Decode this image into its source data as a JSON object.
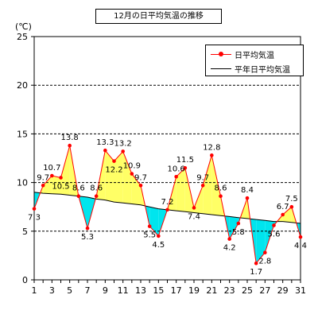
{
  "title": "12月の日平均気温の推移",
  "unit": "(℃)",
  "legend": {
    "daily": "日平均気温",
    "normal": "平年日平均気温"
  },
  "colors": {
    "daily_line": "#ff0000",
    "normal_line": "#000000",
    "above_fill": "#ffff66",
    "below_fill": "#00e5ee",
    "grid": "#000000"
  },
  "chart_data": {
    "type": "line",
    "title": "12月の日平均気温の推移",
    "ylabel": "(℃)",
    "ylim": [
      0,
      25
    ],
    "yticks": [
      0,
      5,
      10,
      15,
      20,
      25
    ],
    "xlim": [
      1,
      31
    ],
    "xticks": [
      1,
      3,
      5,
      7,
      9,
      11,
      13,
      15,
      17,
      19,
      21,
      23,
      25,
      27,
      29,
      31
    ],
    "grid": true,
    "legend_position": "top-right",
    "x": [
      1,
      2,
      3,
      4,
      5,
      6,
      7,
      8,
      9,
      10,
      11,
      12,
      13,
      14,
      15,
      16,
      17,
      18,
      19,
      20,
      21,
      22,
      23,
      24,
      25,
      26,
      27,
      28,
      29,
      30,
      31
    ],
    "series": [
      {
        "name": "日平均気温",
        "values": [
          7.3,
          9.7,
          10.7,
          10.5,
          13.8,
          8.6,
          5.3,
          8.6,
          13.3,
          12.2,
          13.2,
          10.9,
          9.7,
          5.5,
          4.5,
          7.2,
          10.6,
          11.5,
          7.4,
          9.7,
          12.8,
          8.6,
          4.2,
          5.8,
          8.4,
          1.7,
          2.8,
          5.6,
          6.7,
          7.5,
          4.4
        ]
      },
      {
        "name": "平年日平均気温",
        "values": [
          9.0,
          8.9,
          8.85,
          8.8,
          8.7,
          8.6,
          8.5,
          8.3,
          8.2,
          8.0,
          7.9,
          7.8,
          7.7,
          7.5,
          7.3,
          7.2,
          7.1,
          7.0,
          6.9,
          6.8,
          6.7,
          6.6,
          6.5,
          6.4,
          6.3,
          6.2,
          6.1,
          6.0,
          6.0,
          5.9,
          5.8
        ]
      }
    ],
    "data_labels": [
      "7.3",
      "9.7",
      "10.7",
      "10.5",
      "13.8",
      "8.6",
      "5.3",
      "8.6",
      "13.3",
      "12.2",
      "13.2",
      "10.9",
      "9.7",
      "5.5",
      "4.5",
      "7.2",
      "10.6",
      "11.5",
      "7.4",
      "9.7",
      "12.8",
      "8.6",
      "4.2",
      "5.8",
      "8.4",
      "1.7",
      "2.8",
      "5.6",
      "6.7",
      "7.5",
      "4.4"
    ]
  }
}
